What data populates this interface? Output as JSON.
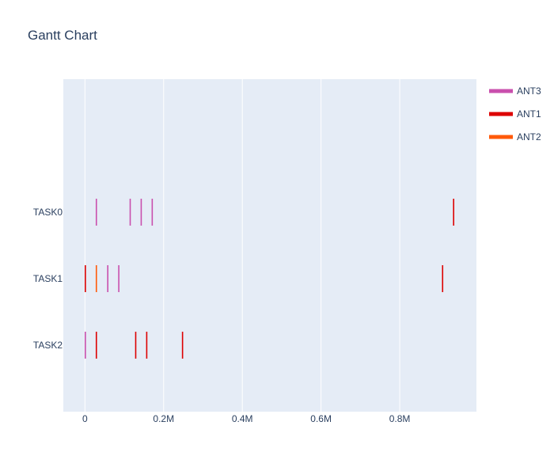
{
  "chart_data": {
    "type": "gantt",
    "title": "Gantt Chart",
    "xlabel": "",
    "ylabel": "",
    "xlim": [
      -55000,
      995000
    ],
    "x_ticks": [
      {
        "value": 0,
        "label": "0"
      },
      {
        "value": 200000,
        "label": "0.2M"
      },
      {
        "value": 400000,
        "label": "0.4M"
      },
      {
        "value": 600000,
        "label": "0.6M"
      },
      {
        "value": 800000,
        "label": "0.8M"
      }
    ],
    "categories": [
      "TASK0",
      "TASK1",
      "TASK2"
    ],
    "legend_position": "top-right",
    "plot_background": "#e5ecf6",
    "series": [
      {
        "name": "ANT3",
        "color": "#c94fad",
        "events": [
          {
            "task": "TASK0",
            "x": 29000
          },
          {
            "task": "TASK0",
            "x": 115000
          },
          {
            "task": "TASK0",
            "x": 143000
          },
          {
            "task": "TASK0",
            "x": 171000
          },
          {
            "task": "TASK1",
            "x": 58000
          },
          {
            "task": "TASK1",
            "x": 86000
          },
          {
            "task": "TASK2",
            "x": 1000
          }
        ]
      },
      {
        "name": "ANT1",
        "color": "#dd0000",
        "events": [
          {
            "task": "TASK0",
            "x": 937000
          },
          {
            "task": "TASK1",
            "x": 1000
          },
          {
            "task": "TASK1",
            "x": 909000
          },
          {
            "task": "TASK2",
            "x": 29000
          },
          {
            "task": "TASK2",
            "x": 129000
          },
          {
            "task": "TASK2",
            "x": 157000
          },
          {
            "task": "TASK2",
            "x": 248000
          }
        ]
      },
      {
        "name": "ANT2",
        "color": "#ff5a0a",
        "events": [
          {
            "task": "TASK1",
            "x": 29000
          }
        ]
      }
    ]
  }
}
